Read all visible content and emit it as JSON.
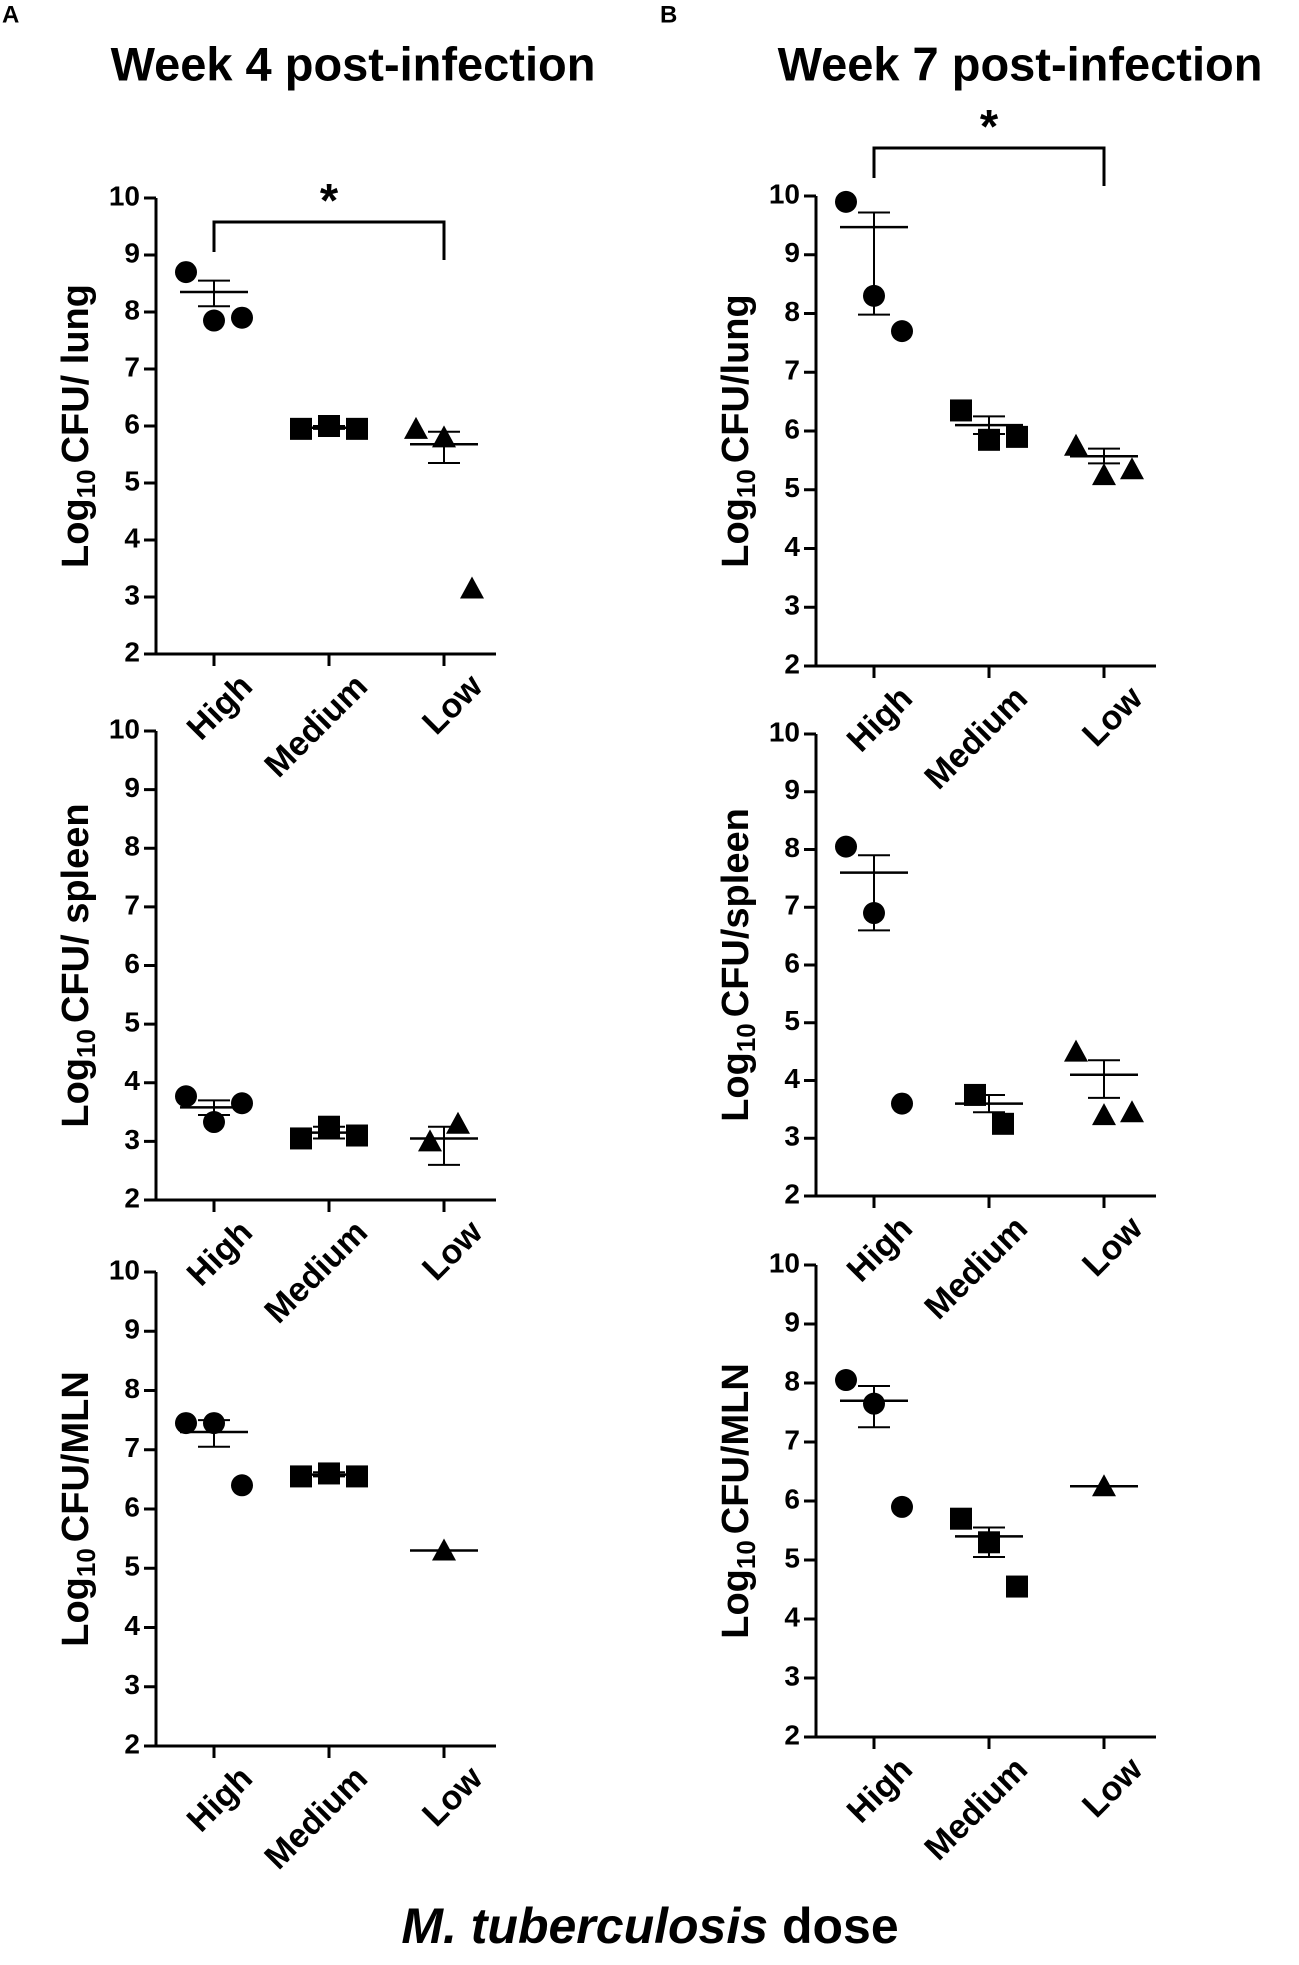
{
  "x_label_italic": "M. tuberculosis",
  "x_label_rest": "dose",
  "chart_data": [
    {
      "type": "dot",
      "panel_label": "A",
      "title": "Week 4 post-infection",
      "y_label": [
        "Log",
        "10",
        "CFU/ lung"
      ],
      "annotation": "*",
      "categories": [
        "High",
        "Medium",
        "Low"
      ],
      "ylim": [
        2,
        10
      ],
      "yticks": [
        2,
        3,
        4,
        5,
        6,
        7,
        8,
        9,
        10
      ],
      "groups": [
        {
          "marker": "circle",
          "values": [
            8.7,
            7.85,
            7.9
          ],
          "mean": 8.35,
          "whisker": [
            8.1,
            8.55
          ]
        },
        {
          "marker": "square",
          "values": [
            5.95,
            6.0,
            5.95
          ],
          "mean": 5.97,
          "whisker": [
            5.95,
            6.0
          ]
        },
        {
          "marker": "triangle",
          "values": [
            5.95,
            5.8,
            3.15
          ],
          "mean": 5.68,
          "whisker": [
            5.35,
            5.9
          ]
        }
      ]
    },
    {
      "type": "dot",
      "y_label": [
        "Log",
        "10",
        "CFU/ spleen"
      ],
      "categories": [
        "High",
        "Medium",
        "Low"
      ],
      "ylim": [
        2,
        10
      ],
      "yticks": [
        2,
        3,
        4,
        5,
        6,
        7,
        8,
        9,
        10
      ],
      "groups": [
        {
          "marker": "circle",
          "values": [
            3.77,
            3.33,
            3.65
          ],
          "mean": 3.58,
          "whisker": [
            3.45,
            3.7
          ]
        },
        {
          "marker": "square",
          "values": [
            3.05,
            3.25,
            3.1
          ],
          "mean": 3.15,
          "whisker": [
            3.05,
            3.25
          ]
        },
        {
          "marker": "triangle",
          "values": [
            3.0,
            3.3
          ],
          "mean": 3.05,
          "whisker": [
            2.6,
            3.25
          ]
        }
      ]
    },
    {
      "type": "dot",
      "y_label": [
        "Log",
        "10",
        "CFU/MLN"
      ],
      "categories": [
        "High",
        "Medium",
        "Low"
      ],
      "ylim": [
        2,
        10
      ],
      "yticks": [
        2,
        3,
        4,
        5,
        6,
        7,
        8,
        9,
        10
      ],
      "groups": [
        {
          "marker": "circle",
          "values": [
            7.45,
            7.45,
            6.4
          ],
          "mean": 7.3,
          "whisker": [
            7.05,
            7.5
          ]
        },
        {
          "marker": "square",
          "values": [
            6.55,
            6.6,
            6.55
          ],
          "mean": 6.58,
          "whisker": [
            6.55,
            6.62
          ]
        },
        {
          "marker": "triangle",
          "values": [
            5.3
          ],
          "mean": 5.3,
          "whisker": [
            5.3,
            5.3
          ]
        }
      ]
    },
    {
      "type": "dot",
      "panel_label": "B",
      "title": "Week 7 post-infection",
      "y_label": [
        "Log",
        "10",
        "CFU/lung"
      ],
      "annotation": "*",
      "categories": [
        "High",
        "Medium",
        "Low"
      ],
      "ylim": [
        2,
        10
      ],
      "yticks": [
        2,
        3,
        4,
        5,
        6,
        7,
        8,
        9,
        10
      ],
      "groups": [
        {
          "marker": "circle",
          "values": [
            9.9,
            8.3,
            7.7
          ],
          "mean": 9.47,
          "whisker": [
            7.98,
            9.72
          ]
        },
        {
          "marker": "square",
          "values": [
            6.35,
            5.85,
            5.9
          ],
          "mean": 6.1,
          "whisker": [
            5.95,
            6.25
          ]
        },
        {
          "marker": "triangle",
          "values": [
            5.75,
            5.25,
            5.35
          ],
          "mean": 5.57,
          "whisker": [
            5.45,
            5.7
          ]
        }
      ]
    },
    {
      "type": "dot",
      "y_label": [
        "Log",
        "10",
        "CFU/spleen"
      ],
      "categories": [
        "High",
        "Medium",
        "Low"
      ],
      "ylim": [
        2,
        10
      ],
      "yticks": [
        2,
        3,
        4,
        5,
        6,
        7,
        8,
        9,
        10
      ],
      "groups": [
        {
          "marker": "circle",
          "values": [
            8.05,
            6.9,
            3.6
          ],
          "mean": 7.6,
          "whisker": [
            6.6,
            7.9
          ]
        },
        {
          "marker": "square",
          "values": [
            3.75,
            3.25
          ],
          "mean": 3.6,
          "whisker": [
            3.45,
            3.75
          ]
        },
        {
          "marker": "triangle",
          "values": [
            4.5,
            3.4,
            3.45
          ],
          "mean": 4.1,
          "whisker": [
            3.7,
            4.35
          ]
        }
      ]
    },
    {
      "type": "dot",
      "y_label": [
        "Log",
        "10",
        "CFU/MLN"
      ],
      "categories": [
        "High",
        "Medium",
        "Low"
      ],
      "ylim": [
        2,
        10
      ],
      "yticks": [
        2,
        3,
        4,
        5,
        6,
        7,
        8,
        9,
        10
      ],
      "groups": [
        {
          "marker": "circle",
          "values": [
            8.05,
            7.65,
            5.9
          ],
          "mean": 7.7,
          "whisker": [
            7.25,
            7.95
          ]
        },
        {
          "marker": "square",
          "values": [
            5.7,
            5.3,
            4.55
          ],
          "mean": 5.4,
          "whisker": [
            5.05,
            5.55
          ]
        },
        {
          "marker": "triangle",
          "values": [
            6.25
          ],
          "mean": 6.25,
          "whisker": [
            6.25,
            6.25
          ]
        }
      ]
    }
  ]
}
